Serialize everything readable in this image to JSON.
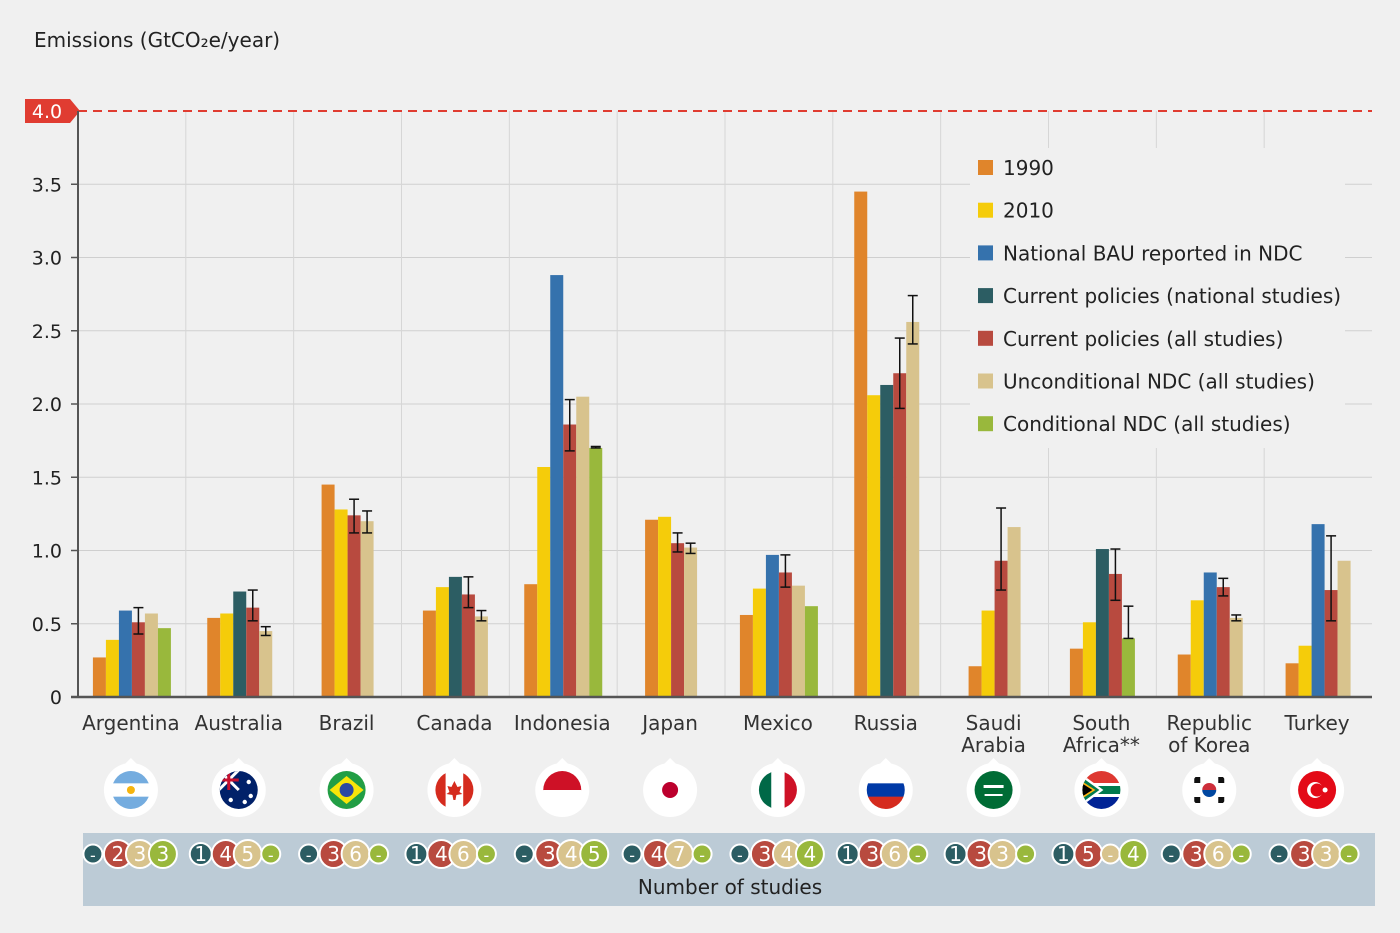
{
  "chart_data": {
    "type": "bar",
    "ylabel": "Emissions (GtCO₂e/year)",
    "ylim": [
      0,
      4.0
    ],
    "yticks": [
      "0",
      "0.5",
      "1.0",
      "1.5",
      "2.0",
      "2.5",
      "3.0",
      "3.5",
      "4.0"
    ],
    "highlight_line": {
      "value": 4.0,
      "label": "4.0",
      "color": "#e03c31"
    },
    "grid": true,
    "legend_position": "top-right",
    "categories": [
      "Argentina",
      "Australia",
      "Brazil",
      "Canada",
      "Indonesia",
      "Japan",
      "Mexico",
      "Russia",
      "Saudi Arabia",
      "South Africa**",
      "Republic of Korea",
      "Turkey"
    ],
    "category_lines": [
      [
        "Argentina"
      ],
      [
        "Australia"
      ],
      [
        "Brazil"
      ],
      [
        "Canada"
      ],
      [
        "Indonesia"
      ],
      [
        "Japan"
      ],
      [
        "Mexico"
      ],
      [
        "Russia"
      ],
      [
        "Saudi",
        "Arabia"
      ],
      [
        "South",
        "Africa**"
      ],
      [
        "Republic",
        "of Korea"
      ],
      [
        "Turkey"
      ]
    ],
    "series": [
      {
        "name": "1990",
        "color": "#e0852b",
        "values": [
          0.27,
          0.54,
          1.45,
          0.59,
          0.77,
          1.21,
          0.56,
          3.45,
          0.21,
          0.33,
          0.29,
          0.23
        ]
      },
      {
        "name": "2010",
        "color": "#f5cc0a",
        "values": [
          0.39,
          0.57,
          1.28,
          0.75,
          1.57,
          1.23,
          0.74,
          2.06,
          0.59,
          0.51,
          0.66,
          0.35
        ]
      },
      {
        "name": "National BAU reported in NDC",
        "color": "#3572ad",
        "values": [
          0.59,
          null,
          null,
          null,
          2.88,
          null,
          0.97,
          null,
          null,
          null,
          0.85,
          1.18
        ]
      },
      {
        "name": "Current policies (national studies)",
        "color": "#2c5d63",
        "values": [
          null,
          0.72,
          null,
          0.82,
          null,
          null,
          null,
          2.13,
          null,
          1.01,
          null,
          null
        ]
      },
      {
        "name": "Current policies (all studies)",
        "color": "#b84a3f",
        "values": [
          0.51,
          0.61,
          1.24,
          0.7,
          1.86,
          1.05,
          0.85,
          2.21,
          0.93,
          0.84,
          0.75,
          0.73
        ],
        "err_low": [
          0.43,
          0.52,
          1.12,
          0.61,
          1.68,
          0.99,
          0.75,
          1.97,
          0.73,
          0.66,
          0.69,
          0.52
        ],
        "err_high": [
          0.61,
          0.73,
          1.35,
          0.82,
          2.03,
          1.12,
          0.97,
          2.45,
          1.29,
          1.01,
          0.81,
          1.1
        ]
      },
      {
        "name": "Unconditional NDC (all studies)",
        "color": "#d8c38d",
        "values": [
          0.57,
          0.45,
          1.2,
          0.55,
          2.05,
          1.02,
          0.76,
          2.56,
          1.16,
          null,
          0.54,
          0.93
        ],
        "err_low": [
          null,
          0.42,
          1.12,
          0.52,
          null,
          0.98,
          null,
          2.41,
          null,
          null,
          0.52,
          null
        ],
        "err_high": [
          null,
          0.48,
          1.27,
          0.59,
          null,
          1.05,
          null,
          2.74,
          null,
          null,
          0.56,
          null
        ]
      },
      {
        "name": "Conditional NDC (all studies)",
        "color": "#99b83c",
        "values": [
          0.47,
          null,
          null,
          null,
          1.7,
          null,
          0.62,
          null,
          null,
          0.4,
          null,
          null
        ],
        "err_low": [
          null,
          null,
          null,
          null,
          1.7,
          null,
          null,
          null,
          null,
          0.4,
          null,
          null
        ],
        "err_high": [
          null,
          null,
          null,
          null,
          1.71,
          null,
          null,
          null,
          null,
          0.62,
          null,
          null
        ]
      }
    ],
    "studies": {
      "title": "Number of studies",
      "colors": [
        "#2c5d63",
        "#b84a3f",
        "#d8c38d",
        "#99b83c"
      ],
      "counts": [
        [
          "-",
          "2",
          "3",
          "3"
        ],
        [
          "1",
          "4",
          "5",
          "-"
        ],
        [
          "-",
          "3",
          "6",
          "-"
        ],
        [
          "1",
          "4",
          "6",
          "-"
        ],
        [
          "-",
          "3",
          "4",
          "5"
        ],
        [
          "-",
          "4",
          "7",
          "-"
        ],
        [
          "-",
          "3",
          "4",
          "4"
        ],
        [
          "1",
          "3",
          "6",
          "-"
        ],
        [
          "1",
          "3",
          "3",
          "-"
        ],
        [
          "1",
          "5",
          "-",
          "4"
        ],
        [
          "-",
          "3",
          "6",
          "-"
        ],
        [
          "-",
          "3",
          "3",
          "-"
        ]
      ]
    },
    "flag_icons": [
      "argentina-flag-icon",
      "australia-flag-icon",
      "brazil-flag-icon",
      "canada-flag-icon",
      "indonesia-flag-icon",
      "japan-flag-icon",
      "mexico-flag-icon",
      "russia-flag-icon",
      "saudi-arabia-flag-icon",
      "south-africa-flag-icon",
      "south-korea-flag-icon",
      "turkey-flag-icon"
    ]
  }
}
